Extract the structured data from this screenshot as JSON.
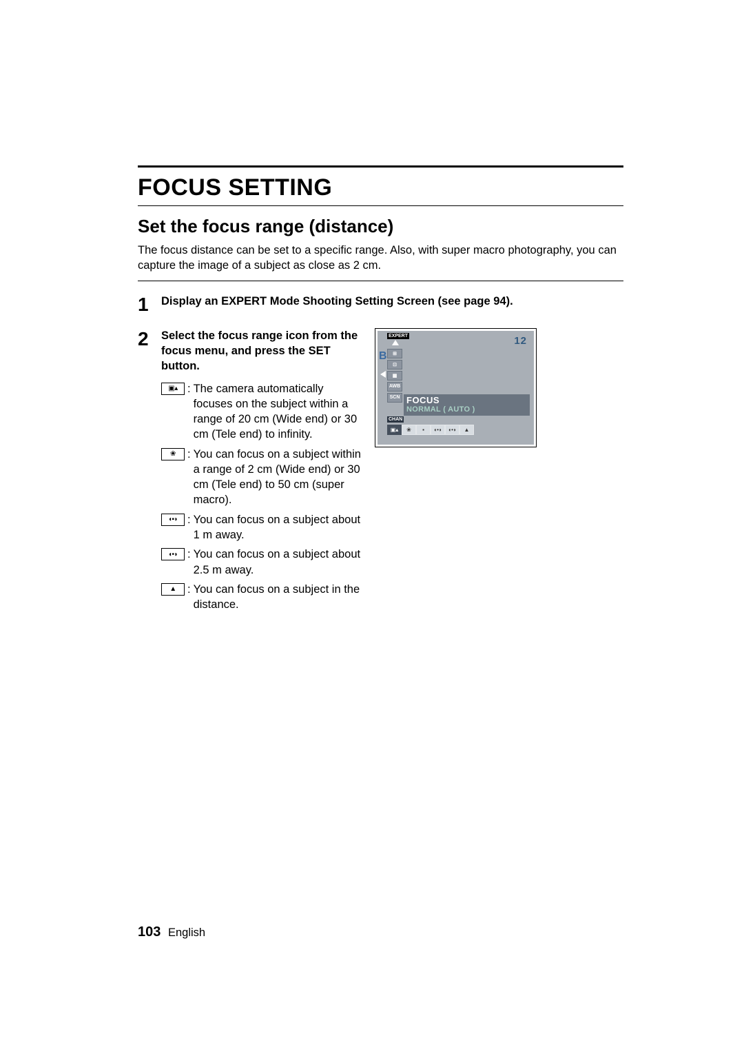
{
  "title": "FOCUS SETTING",
  "subtitle": "Set the focus range (distance)",
  "intro": "The focus distance can be set to a specific range. Also, with super macro photography, you can capture the image of a subject as close as 2 cm.",
  "step1": {
    "num": "1",
    "heading": "Display an EXPERT Mode Shooting Setting Screen (see page 94)."
  },
  "step2": {
    "num": "2",
    "heading": "Select the focus range icon from the focus menu, and press the SET button.",
    "options": [
      {
        "icon": "normal-focus-icon",
        "glyph": "▣▴",
        "desc": "The camera automatically focuses on the subject within a range of 20 cm (Wide end) or 30 cm (Tele end) to infinity."
      },
      {
        "icon": "macro-focus-icon",
        "glyph": "❀",
        "desc": "You can focus on a subject within a range of 2 cm (Wide end) or 30 cm (Tele end) to 50 cm (super macro)."
      },
      {
        "icon": "1m-focus-icon",
        "glyph": "◖▪◗",
        "desc": "You can focus on a subject about 1 m away."
      },
      {
        "icon": "2_5m-focus-icon",
        "glyph": "◖•◗",
        "desc": "You can focus on a subject about 2.5 m away."
      },
      {
        "icon": "distance-focus-icon",
        "glyph": "▲",
        "desc": "You can focus on a subject in the distance."
      }
    ]
  },
  "lcd": {
    "corner_number": "12",
    "side_letter": "B",
    "expert_label": "EXPERT",
    "side_icons": [
      "⊞",
      "⊡",
      "▦",
      "AWB",
      "SCN"
    ],
    "highlight_title": "FOCUS",
    "highlight_sub": "NORMAL ( AUTO )",
    "chan_label": "CHAN",
    "bottom_icons": [
      "▣▴",
      "❀",
      "▪",
      "◖•◗",
      "◖•◗",
      "▲"
    ]
  },
  "footer": {
    "page_number": "103",
    "language": "English"
  },
  "colors": {
    "lcd_bg": "#a9afb6",
    "lcd_number": "#30597f",
    "lcd_side_letter": "#3b6aa0",
    "lcd_highlight_bg": "#6a7480",
    "lcd_sub_text": "#a9cfc4"
  }
}
